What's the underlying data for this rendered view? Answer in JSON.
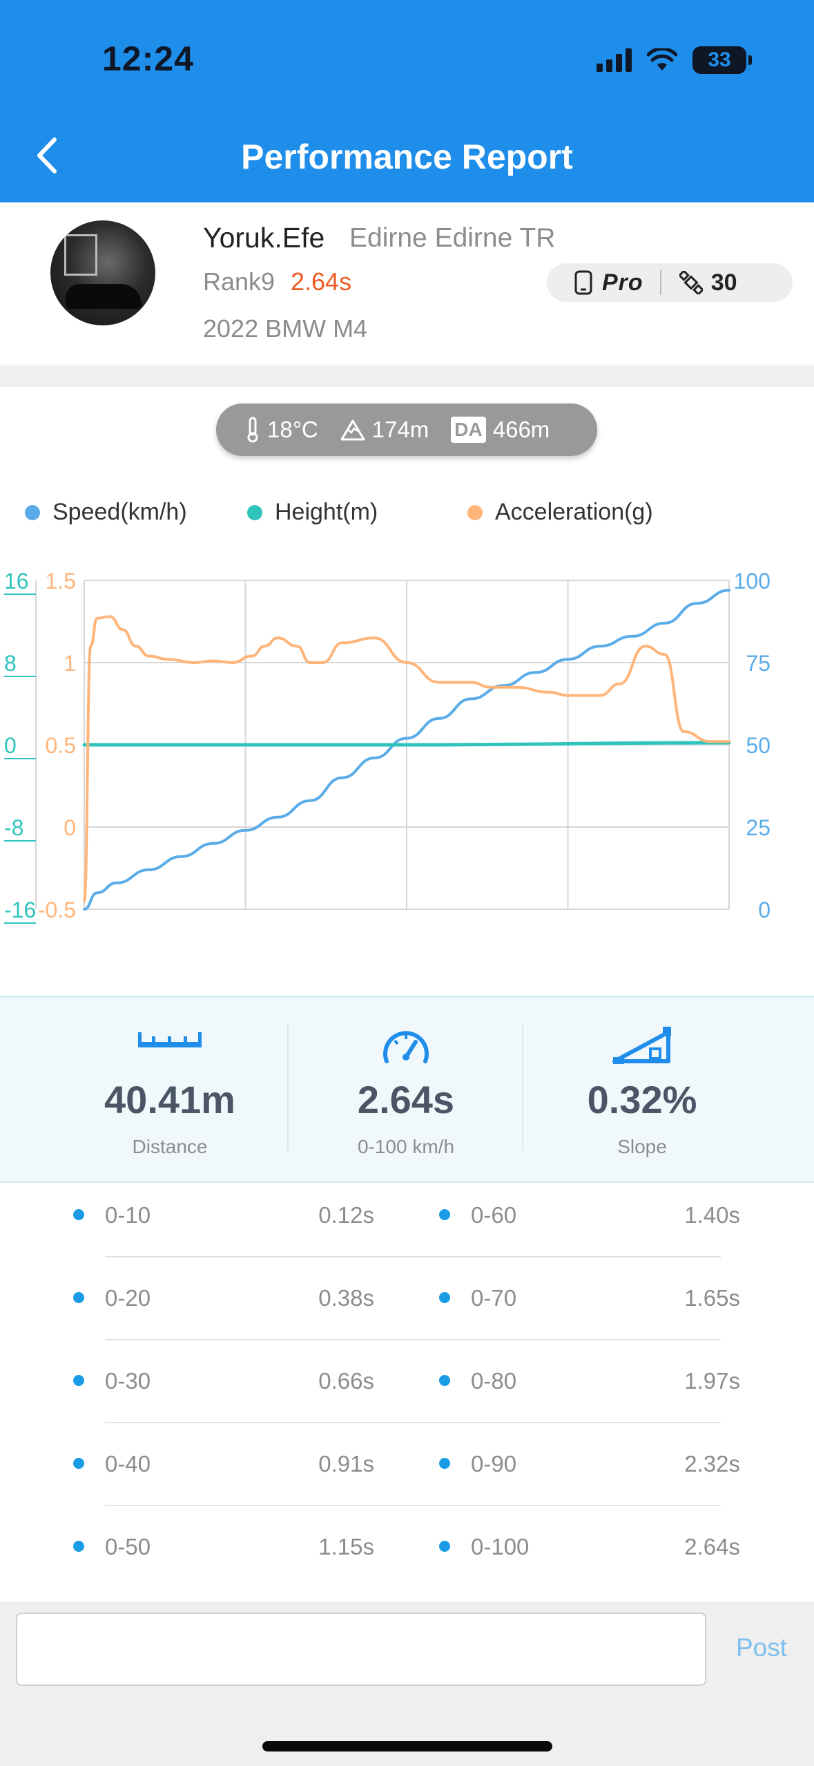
{
  "status": {
    "time": "12:24",
    "battery": "33"
  },
  "header": {
    "title": "Performance Report"
  },
  "profile": {
    "name": "Yoruk.Efe",
    "location": "Edirne Edirne TR",
    "rank": "Rank9",
    "time": "2.64s",
    "car": "2022 BMW M4",
    "badge_pro": "Pro",
    "badge_count": "30"
  },
  "conditions": {
    "temperature": "18°C",
    "altitude": "174m",
    "da_label": "DA",
    "density_altitude": "466m"
  },
  "legend": [
    {
      "label": "Speed(km/h)",
      "color": "#5aace8"
    },
    {
      "label": "Height(m)",
      "color": "#2ec4bd"
    },
    {
      "label": "Acceleration(g)",
      "color": "#ffb57a"
    }
  ],
  "chart_data": {
    "type": "line",
    "axes": {
      "height_ticks": [
        "16",
        "8",
        "0",
        "-8",
        "-16"
      ],
      "accel_ticks": [
        "1.5",
        "1",
        "0.5",
        "0",
        "-0.5"
      ],
      "speed_ticks": [
        "100",
        "75",
        "50",
        "25",
        "0"
      ],
      "height_range": [
        -16,
        16
      ],
      "accel_range": [
        -0.5,
        1.5
      ],
      "speed_range": [
        0,
        100
      ]
    },
    "x_range": [
      0,
      1
    ],
    "series": [
      {
        "name": "Speed(km/h)",
        "color": "#5aace8",
        "axis": "speed",
        "x": [
          0,
          0.02,
          0.05,
          0.1,
          0.15,
          0.2,
          0.25,
          0.3,
          0.35,
          0.4,
          0.45,
          0.5,
          0.55,
          0.6,
          0.65,
          0.7,
          0.75,
          0.8,
          0.85,
          0.9,
          0.95,
          1.0
        ],
        "y": [
          0,
          5,
          8,
          12,
          16,
          20,
          24,
          28,
          33,
          40,
          46,
          52,
          58,
          64,
          68,
          72,
          76,
          80,
          83,
          87,
          93,
          97
        ]
      },
      {
        "name": "Height(m)",
        "color": "#2ec4bd",
        "axis": "height",
        "x": [
          0,
          0.5,
          1.0
        ],
        "y": [
          0,
          0,
          0.2
        ]
      },
      {
        "name": "Acceleration(g)",
        "color": "#ffb57a",
        "axis": "accel",
        "x": [
          0,
          0.01,
          0.02,
          0.04,
          0.06,
          0.08,
          0.1,
          0.13,
          0.17,
          0.2,
          0.23,
          0.26,
          0.28,
          0.3,
          0.33,
          0.35,
          0.37,
          0.4,
          0.45,
          0.5,
          0.55,
          0.6,
          0.63,
          0.67,
          0.72,
          0.75,
          0.8,
          0.83,
          0.87,
          0.9,
          0.93,
          0.97,
          1.0
        ],
        "y": [
          -0.45,
          1.1,
          1.27,
          1.28,
          1.2,
          1.1,
          1.04,
          1.02,
          1.0,
          1.01,
          1.0,
          1.04,
          1.1,
          1.15,
          1.1,
          1.0,
          1.0,
          1.12,
          1.15,
          1.0,
          0.88,
          0.88,
          0.85,
          0.85,
          0.82,
          0.8,
          0.8,
          0.87,
          1.1,
          1.05,
          0.58,
          0.52,
          0.52
        ]
      }
    ]
  },
  "stats": [
    {
      "value": "40.41m",
      "label": "Distance",
      "icon": "ruler-icon"
    },
    {
      "value": "2.64s",
      "label": "0-100 km/h",
      "icon": "speedometer-icon"
    },
    {
      "value": "0.32%",
      "label": "Slope",
      "icon": "slope-icon"
    }
  ],
  "splits_left": [
    {
      "range": "0-10",
      "time": "0.12s"
    },
    {
      "range": "0-20",
      "time": "0.38s"
    },
    {
      "range": "0-30",
      "time": "0.66s"
    },
    {
      "range": "0-40",
      "time": "0.91s"
    },
    {
      "range": "0-50",
      "time": "1.15s"
    }
  ],
  "splits_right": [
    {
      "range": "0-60",
      "time": "1.40s"
    },
    {
      "range": "0-70",
      "time": "1.65s"
    },
    {
      "range": "0-80",
      "time": "1.97s"
    },
    {
      "range": "0-90",
      "time": "2.32s"
    },
    {
      "range": "0-100",
      "time": "2.64s"
    }
  ],
  "comment": {
    "placeholder": "",
    "post_label": "Post"
  }
}
